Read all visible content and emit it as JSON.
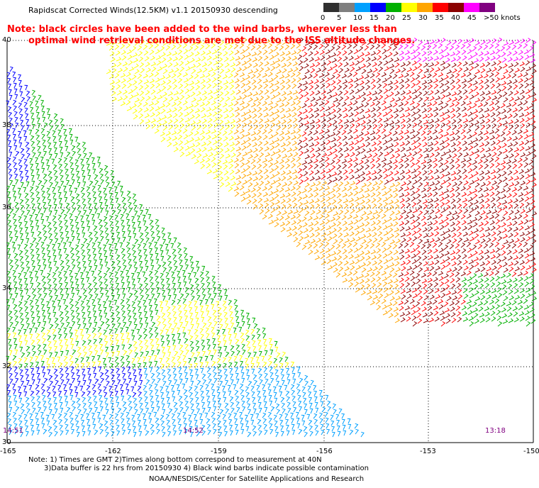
{
  "title": "Rapidscat Corrected Winds(12.5KM) v1.1 20150930 descending",
  "notes": {
    "line1": "Note: black circles have been added to the wind barbs, wherever less than",
    "line2": "optimal wind retrieval conditions are met due to the ISS altitude changes."
  },
  "colorbar": {
    "labels": [
      "0",
      "5",
      "10",
      "15",
      "20",
      "25",
      "30",
      "35",
      "40",
      "45",
      ">50 knots"
    ],
    "colors": [
      "#303030",
      "#7f7f7f",
      "#00a0ff",
      "#0000ff",
      "#00b000",
      "#ffff00",
      "#ffa500",
      "#ff0000",
      "#8b0000",
      "#ff00ff",
      "#800080"
    ]
  },
  "axes": {
    "lat_labels": [
      "40",
      "38",
      "36",
      "34",
      "32",
      "30"
    ],
    "lon_labels": [
      "-165",
      "-162",
      "-159",
      "-156",
      "-153",
      "-150"
    ]
  },
  "times": [
    "14:51",
    "14:52",
    "13:18"
  ],
  "footer": {
    "line1": "Note: 1) Times are GMT 2)Times along bottom correspond to measurement at 40N",
    "line2": "3)Data buffer is 22 hrs from 20150930 4) Black wind barbs indicate possible contamination",
    "line3": "NOAA/NESDIS/Center for Satellite Applications and Research"
  }
}
